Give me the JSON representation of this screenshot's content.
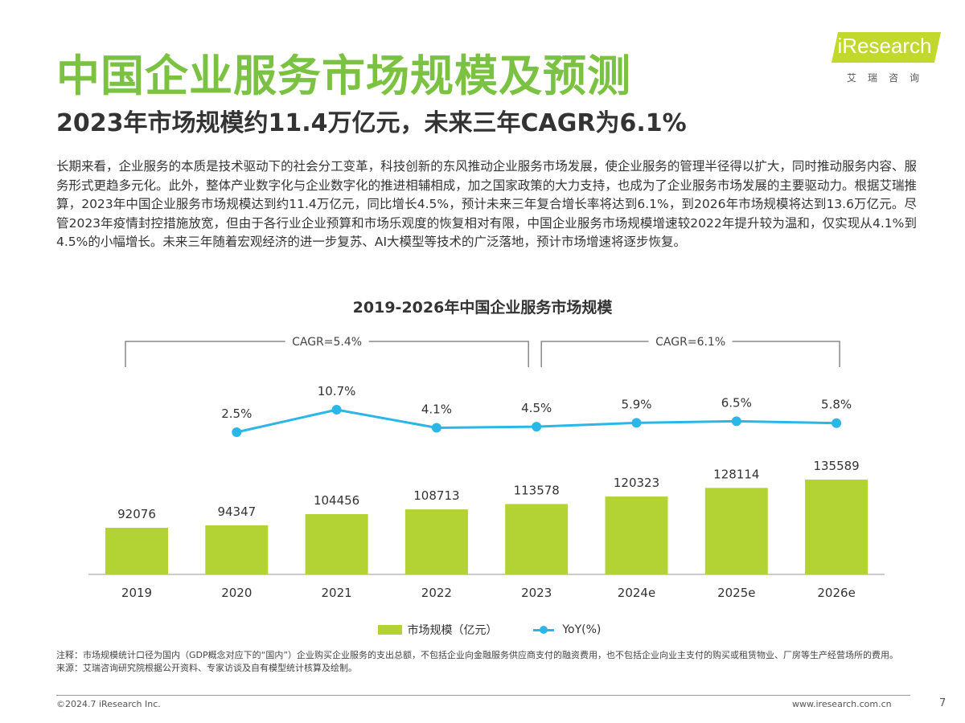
{
  "header": {
    "title": "中国企业服务市场规模及预测",
    "subtitle": "2023年市场规模约11.4万亿元，未来三年CAGR为6.1%"
  },
  "logo": {
    "name": "iResearch",
    "sub": "艾瑞咨询"
  },
  "body_text": "长期来看，企业服务的本质是技术驱动下的社会分工变革，科技创新的东风推动企业服务市场发展，使企业服务的管理半径得以扩大，同时推动服务内容、服务形式更趋多元化。此外，整体产业数字化与企业数字化的推进相辅相成，加之国家政策的大力支持，也成为了企业服务市场发展的主要驱动力。根据艾瑞推算，2023年中国企业服务市场规模达到约11.4万亿元，同比增长4.5%，预计未来三年复合增长率将达到6.1%，到2026年市场规模将达到13.6万亿元。尽管2023年疫情封控措施放宽，但由于各行业企业预算和市场乐观度的恢复相对有限，中国企业服务市场规模增速较2022年提升较为温和，仅实现从4.1%到4.5%的小幅增长。未来三年随着宏观经济的进一步复苏、AI大模型等技术的广泛落地，预计市场增速将逐步恢复。",
  "chart_data": {
    "type": "bar+line",
    "title": "2019-2026年中国企业服务市场规模",
    "categories": [
      "2019",
      "2020",
      "2021",
      "2022",
      "2023",
      "2024e",
      "2025e",
      "2026e"
    ],
    "series": [
      {
        "name": "市场规模（亿元）",
        "type": "bar",
        "color": "#b3d234",
        "values": [
          92076,
          94347,
          104456,
          108713,
          113578,
          120323,
          128114,
          135589
        ]
      },
      {
        "name": "YoY(%)",
        "type": "line",
        "color": "#2ab7e8",
        "values": [
          null,
          2.5,
          10.7,
          4.1,
          4.5,
          5.9,
          6.5,
          5.8
        ],
        "labels": [
          null,
          "2.5%",
          "10.7%",
          "4.1%",
          "4.5%",
          "5.9%",
          "6.5%",
          "5.8%"
        ]
      }
    ],
    "annotations": [
      {
        "text": "CAGR=5.4%",
        "from": "2019",
        "to": "2023"
      },
      {
        "text": "CAGR=6.1%",
        "from": "2023",
        "to": "2026e"
      }
    ],
    "legend_position": "bottom-center"
  },
  "notes": {
    "note": "注释：市场规模统计口径为国内（GDP概念对应下的“国内”）企业购买企业服务的支出总额，不包括企业向金融服务供应商支付的融资费用，也不包括企业向业主支付的购买或租赁物业、厂房等生产经营场所的费用。",
    "source": "来源：艾瑞咨询研究院根据公开资料、专家访谈及自有模型统计核算及绘制。"
  },
  "footer": {
    "copyright": "©2024.7 iResearch Inc.",
    "url": "www.iresearch.com.cn",
    "page": "7"
  }
}
